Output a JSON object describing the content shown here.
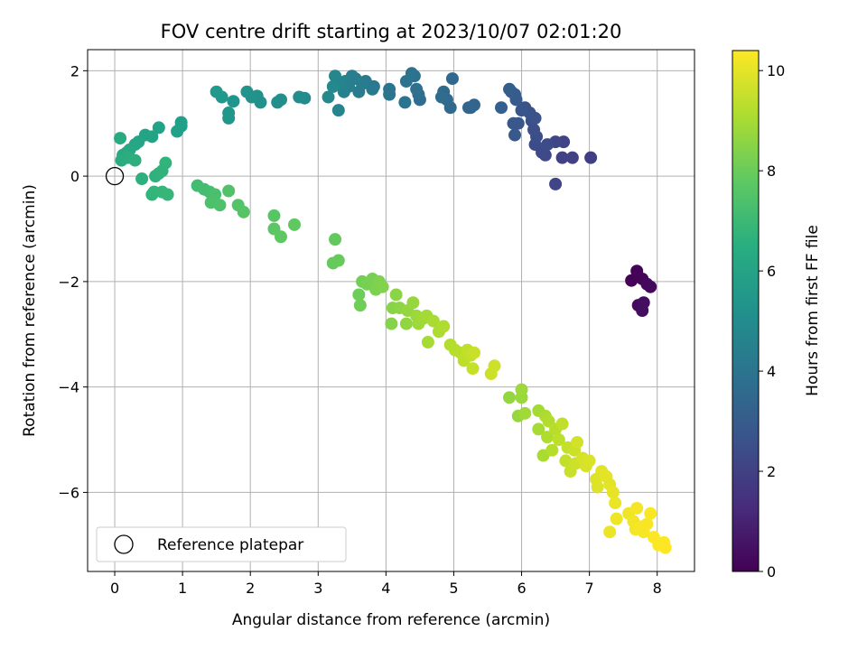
{
  "chart_data": {
    "type": "scatter",
    "title": "FOV centre drift starting at 2023/10/07 02:01:20",
    "xlabel": "Angular distance from reference (arcmin)",
    "ylabel": "Rotation from reference (arcmin)",
    "xlim": [
      -0.4,
      8.55
    ],
    "ylim": [
      -7.5,
      2.4
    ],
    "xticks": [
      0,
      1,
      2,
      3,
      4,
      5,
      6,
      7,
      8
    ],
    "yticks": [
      -6,
      -4,
      -2,
      0,
      2
    ],
    "grid": true,
    "legend": {
      "placement": "lower-left",
      "entries": [
        "Reference platepar"
      ]
    },
    "reference_point": {
      "x": 0,
      "y": 0
    },
    "colorbar": {
      "label": "Hours from first FF file",
      "colormap": "viridis",
      "range": [
        0,
        10.4
      ],
      "ticks": [
        0,
        2,
        4,
        6,
        8,
        10
      ]
    },
    "points": [
      {
        "x": 7.62,
        "y": -1.98,
        "h": 0.05
      },
      {
        "x": 7.7,
        "y": -1.8,
        "h": 0.1
      },
      {
        "x": 7.78,
        "y": -1.95,
        "h": 0.15
      },
      {
        "x": 7.85,
        "y": -2.05,
        "h": 0.2
      },
      {
        "x": 7.9,
        "y": -2.1,
        "h": 0.25
      },
      {
        "x": 7.72,
        "y": -2.45,
        "h": 0.3
      },
      {
        "x": 7.78,
        "y": -2.55,
        "h": 0.35
      },
      {
        "x": 7.8,
        "y": -2.4,
        "h": 0.4
      },
      {
        "x": 7.02,
        "y": 0.35,
        "h": 1.9
      },
      {
        "x": 6.75,
        "y": 0.35,
        "h": 2.0
      },
      {
        "x": 6.6,
        "y": 0.35,
        "h": 2.05
      },
      {
        "x": 6.62,
        "y": 0.65,
        "h": 2.1
      },
      {
        "x": 6.5,
        "y": -0.15,
        "h": 2.15
      },
      {
        "x": 6.5,
        "y": 0.65,
        "h": 2.2
      },
      {
        "x": 6.35,
        "y": 0.4,
        "h": 2.25
      },
      {
        "x": 6.3,
        "y": 0.45,
        "h": 2.3
      },
      {
        "x": 6.38,
        "y": 0.6,
        "h": 2.35
      },
      {
        "x": 6.2,
        "y": 0.6,
        "h": 2.4
      },
      {
        "x": 6.22,
        "y": 0.75,
        "h": 2.45
      },
      {
        "x": 6.18,
        "y": 0.88,
        "h": 2.5
      },
      {
        "x": 6.15,
        "y": 1.05,
        "h": 2.55
      },
      {
        "x": 6.2,
        "y": 1.1,
        "h": 2.6
      },
      {
        "x": 6.12,
        "y": 1.2,
        "h": 2.65
      },
      {
        "x": 6.05,
        "y": 1.3,
        "h": 2.7
      },
      {
        "x": 6.0,
        "y": 1.25,
        "h": 2.75
      },
      {
        "x": 5.95,
        "y": 1.0,
        "h": 2.8
      },
      {
        "x": 5.88,
        "y": 1.0,
        "h": 2.85
      },
      {
        "x": 5.9,
        "y": 0.78,
        "h": 2.9
      },
      {
        "x": 5.92,
        "y": 1.45,
        "h": 2.95
      },
      {
        "x": 5.9,
        "y": 1.55,
        "h": 3.0
      },
      {
        "x": 5.85,
        "y": 1.6,
        "h": 3.05
      },
      {
        "x": 5.82,
        "y": 1.65,
        "h": 3.1
      },
      {
        "x": 5.7,
        "y": 1.3,
        "h": 3.15
      },
      {
        "x": 5.3,
        "y": 1.35,
        "h": 3.3
      },
      {
        "x": 5.25,
        "y": 1.3,
        "h": 3.35
      },
      {
        "x": 5.22,
        "y": 1.3,
        "h": 3.4
      },
      {
        "x": 4.98,
        "y": 1.85,
        "h": 3.45
      },
      {
        "x": 4.95,
        "y": 1.3,
        "h": 3.5
      },
      {
        "x": 4.9,
        "y": 1.45,
        "h": 3.55
      },
      {
        "x": 4.85,
        "y": 1.6,
        "h": 3.6
      },
      {
        "x": 4.82,
        "y": 1.5,
        "h": 3.65
      },
      {
        "x": 4.5,
        "y": 1.45,
        "h": 3.7
      },
      {
        "x": 4.48,
        "y": 1.55,
        "h": 3.75
      },
      {
        "x": 4.45,
        "y": 1.65,
        "h": 3.8
      },
      {
        "x": 4.42,
        "y": 1.9,
        "h": 3.85
      },
      {
        "x": 4.38,
        "y": 1.95,
        "h": 3.9
      },
      {
        "x": 4.3,
        "y": 1.8,
        "h": 3.95
      },
      {
        "x": 4.28,
        "y": 1.4,
        "h": 4.0
      },
      {
        "x": 4.05,
        "y": 1.55,
        "h": 4.05
      },
      {
        "x": 4.05,
        "y": 1.65,
        "h": 4.1
      },
      {
        "x": 3.82,
        "y": 1.7,
        "h": 4.15
      },
      {
        "x": 3.8,
        "y": 1.65,
        "h": 4.2
      },
      {
        "x": 3.7,
        "y": 1.8,
        "h": 4.25
      },
      {
        "x": 3.65,
        "y": 1.75,
        "h": 4.3
      },
      {
        "x": 3.6,
        "y": 1.6,
        "h": 4.35
      },
      {
        "x": 3.55,
        "y": 1.85,
        "h": 4.4
      },
      {
        "x": 3.5,
        "y": 1.9,
        "h": 4.45
      },
      {
        "x": 3.45,
        "y": 1.7,
        "h": 4.5
      },
      {
        "x": 3.4,
        "y": 1.8,
        "h": 4.55
      },
      {
        "x": 3.38,
        "y": 1.6,
        "h": 4.6
      },
      {
        "x": 3.35,
        "y": 1.75,
        "h": 4.65
      },
      {
        "x": 3.3,
        "y": 1.25,
        "h": 4.7
      },
      {
        "x": 3.28,
        "y": 1.75,
        "h": 4.75
      },
      {
        "x": 3.25,
        "y": 1.9,
        "h": 4.8
      },
      {
        "x": 3.22,
        "y": 1.7,
        "h": 4.85
      },
      {
        "x": 3.15,
        "y": 1.5,
        "h": 4.9
      },
      {
        "x": 2.8,
        "y": 1.48,
        "h": 5.0
      },
      {
        "x": 2.72,
        "y": 1.5,
        "h": 5.05
      },
      {
        "x": 2.45,
        "y": 1.45,
        "h": 5.1
      },
      {
        "x": 2.4,
        "y": 1.4,
        "h": 5.15
      },
      {
        "x": 2.15,
        "y": 1.4,
        "h": 5.2
      },
      {
        "x": 2.1,
        "y": 1.52,
        "h": 5.25
      },
      {
        "x": 2.02,
        "y": 1.5,
        "h": 5.3
      },
      {
        "x": 1.95,
        "y": 1.6,
        "h": 5.35
      },
      {
        "x": 1.75,
        "y": 1.42,
        "h": 5.4
      },
      {
        "x": 1.68,
        "y": 1.1,
        "h": 5.45
      },
      {
        "x": 1.68,
        "y": 1.2,
        "h": 5.5
      },
      {
        "x": 1.58,
        "y": 1.5,
        "h": 5.55
      },
      {
        "x": 1.5,
        "y": 1.6,
        "h": 5.6
      },
      {
        "x": 0.98,
        "y": 0.95,
        "h": 5.8
      },
      {
        "x": 0.98,
        "y": 1.02,
        "h": 5.85
      },
      {
        "x": 0.92,
        "y": 0.85,
        "h": 5.9
      },
      {
        "x": 0.65,
        "y": 0.92,
        "h": 5.95
      },
      {
        "x": 0.55,
        "y": 0.75,
        "h": 6.0
      },
      {
        "x": 0.45,
        "y": 0.78,
        "h": 6.05
      },
      {
        "x": 0.35,
        "y": 0.65,
        "h": 6.1
      },
      {
        "x": 0.3,
        "y": 0.6,
        "h": 6.15
      },
      {
        "x": 0.22,
        "y": 0.5,
        "h": 6.2
      },
      {
        "x": 0.18,
        "y": 0.45,
        "h": 6.25
      },
      {
        "x": 0.12,
        "y": 0.4,
        "h": 6.3
      },
      {
        "x": 0.08,
        "y": 0.72,
        "h": 6.35
      },
      {
        "x": 0.1,
        "y": 0.3,
        "h": 6.4
      },
      {
        "x": 0.2,
        "y": 0.35,
        "h": 6.45
      },
      {
        "x": 0.3,
        "y": 0.3,
        "h": 6.5
      },
      {
        "x": 0.4,
        "y": -0.05,
        "h": 6.55
      },
      {
        "x": 0.6,
        "y": 0.0,
        "h": 6.6
      },
      {
        "x": 0.65,
        "y": 0.05,
        "h": 6.65
      },
      {
        "x": 0.7,
        "y": 0.1,
        "h": 6.7
      },
      {
        "x": 0.75,
        "y": 0.25,
        "h": 6.75
      },
      {
        "x": 0.58,
        "y": -0.3,
        "h": 6.8
      },
      {
        "x": 0.55,
        "y": -0.35,
        "h": 6.85
      },
      {
        "x": 0.7,
        "y": -0.3,
        "h": 6.9
      },
      {
        "x": 0.78,
        "y": -0.35,
        "h": 6.95
      },
      {
        "x": 1.22,
        "y": -0.18,
        "h": 7.2
      },
      {
        "x": 1.32,
        "y": -0.25,
        "h": 7.25
      },
      {
        "x": 1.4,
        "y": -0.3,
        "h": 7.3
      },
      {
        "x": 1.48,
        "y": -0.35,
        "h": 7.35
      },
      {
        "x": 1.42,
        "y": -0.5,
        "h": 7.4
      },
      {
        "x": 1.55,
        "y": -0.55,
        "h": 7.45
      },
      {
        "x": 1.68,
        "y": -0.28,
        "h": 7.5
      },
      {
        "x": 1.82,
        "y": -0.55,
        "h": 7.55
      },
      {
        "x": 1.9,
        "y": -0.68,
        "h": 7.6
      },
      {
        "x": 2.35,
        "y": -0.75,
        "h": 7.65
      },
      {
        "x": 2.35,
        "y": -1.0,
        "h": 7.7
      },
      {
        "x": 2.45,
        "y": -1.15,
        "h": 7.75
      },
      {
        "x": 2.65,
        "y": -0.92,
        "h": 7.8
      },
      {
        "x": 3.25,
        "y": -1.2,
        "h": 7.85
      },
      {
        "x": 3.22,
        "y": -1.65,
        "h": 7.9
      },
      {
        "x": 3.3,
        "y": -1.6,
        "h": 7.95
      },
      {
        "x": 3.6,
        "y": -2.25,
        "h": 8.05
      },
      {
        "x": 3.62,
        "y": -2.45,
        "h": 8.1
      },
      {
        "x": 3.65,
        "y": -2.0,
        "h": 8.15
      },
      {
        "x": 3.72,
        "y": -2.05,
        "h": 8.2
      },
      {
        "x": 3.8,
        "y": -1.95,
        "h": 8.25
      },
      {
        "x": 3.85,
        "y": -2.15,
        "h": 8.3
      },
      {
        "x": 3.9,
        "y": -2.0,
        "h": 8.35
      },
      {
        "x": 3.95,
        "y": -2.1,
        "h": 8.4
      },
      {
        "x": 4.08,
        "y": -2.8,
        "h": 8.45
      },
      {
        "x": 4.1,
        "y": -2.5,
        "h": 8.5
      },
      {
        "x": 4.15,
        "y": -2.25,
        "h": 8.55
      },
      {
        "x": 4.2,
        "y": -2.5,
        "h": 8.6
      },
      {
        "x": 4.3,
        "y": -2.8,
        "h": 8.65
      },
      {
        "x": 4.32,
        "y": -2.55,
        "h": 8.7
      },
      {
        "x": 4.4,
        "y": -2.4,
        "h": 8.75
      },
      {
        "x": 4.45,
        "y": -2.65,
        "h": 8.8
      },
      {
        "x": 4.48,
        "y": -2.8,
        "h": 8.85
      },
      {
        "x": 4.55,
        "y": -2.7,
        "h": 8.9
      },
      {
        "x": 4.6,
        "y": -2.65,
        "h": 8.95
      },
      {
        "x": 4.62,
        "y": -3.15,
        "h": 9.0
      },
      {
        "x": 4.7,
        "y": -2.75,
        "h": 9.05
      },
      {
        "x": 4.78,
        "y": -2.95,
        "h": 9.1
      },
      {
        "x": 4.85,
        "y": -2.85,
        "h": 9.15
      },
      {
        "x": 4.95,
        "y": -3.2,
        "h": 9.2
      },
      {
        "x": 5.02,
        "y": -3.3,
        "h": 9.25
      },
      {
        "x": 5.1,
        "y": -3.35,
        "h": 9.3
      },
      {
        "x": 5.15,
        "y": -3.5,
        "h": 9.35
      },
      {
        "x": 5.2,
        "y": -3.3,
        "h": 9.4
      },
      {
        "x": 5.25,
        "y": -3.4,
        "h": 9.45
      },
      {
        "x": 5.28,
        "y": -3.65,
        "h": 9.5
      },
      {
        "x": 5.3,
        "y": -3.35,
        "h": 9.55
      },
      {
        "x": 5.55,
        "y": -3.75,
        "h": 9.6
      },
      {
        "x": 5.6,
        "y": -3.6,
        "h": 9.65
      },
      {
        "x": 5.82,
        "y": -4.2,
        "h": 8.7
      },
      {
        "x": 5.95,
        "y": -4.55,
        "h": 8.75
      },
      {
        "x": 6.0,
        "y": -4.2,
        "h": 8.8
      },
      {
        "x": 6.0,
        "y": -4.05,
        "h": 8.85
      },
      {
        "x": 6.05,
        "y": -4.5,
        "h": 8.9
      },
      {
        "x": 6.25,
        "y": -4.45,
        "h": 8.95
      },
      {
        "x": 6.25,
        "y": -4.8,
        "h": 9.0
      },
      {
        "x": 6.32,
        "y": -5.3,
        "h": 9.05
      },
      {
        "x": 6.35,
        "y": -4.55,
        "h": 9.1
      },
      {
        "x": 6.38,
        "y": -4.95,
        "h": 9.15
      },
      {
        "x": 6.4,
        "y": -4.65,
        "h": 9.2
      },
      {
        "x": 6.45,
        "y": -5.2,
        "h": 9.25
      },
      {
        "x": 6.5,
        "y": -4.8,
        "h": 9.3
      },
      {
        "x": 6.55,
        "y": -5.0,
        "h": 9.35
      },
      {
        "x": 6.6,
        "y": -4.7,
        "h": 9.4
      },
      {
        "x": 6.65,
        "y": -5.4,
        "h": 9.45
      },
      {
        "x": 6.68,
        "y": -5.15,
        "h": 9.5
      },
      {
        "x": 6.72,
        "y": -5.6,
        "h": 9.55
      },
      {
        "x": 6.78,
        "y": -5.2,
        "h": 9.6
      },
      {
        "x": 6.8,
        "y": -5.45,
        "h": 9.65
      },
      {
        "x": 6.82,
        "y": -5.05,
        "h": 9.7
      },
      {
        "x": 6.9,
        "y": -5.35,
        "h": 9.75
      },
      {
        "x": 6.95,
        "y": -5.5,
        "h": 9.8
      },
      {
        "x": 7.0,
        "y": -5.4,
        "h": 9.85
      },
      {
        "x": 7.1,
        "y": -5.75,
        "h": 9.9
      },
      {
        "x": 7.12,
        "y": -5.9,
        "h": 9.92
      },
      {
        "x": 7.18,
        "y": -5.6,
        "h": 9.95
      },
      {
        "x": 7.25,
        "y": -5.7,
        "h": 9.98
      },
      {
        "x": 7.3,
        "y": -5.85,
        "h": 10.0
      },
      {
        "x": 7.35,
        "y": -6.0,
        "h": 10.05
      },
      {
        "x": 7.38,
        "y": -6.2,
        "h": 10.1
      },
      {
        "x": 7.3,
        "y": -6.75,
        "h": 10.12
      },
      {
        "x": 7.4,
        "y": -6.5,
        "h": 10.15
      },
      {
        "x": 7.58,
        "y": -6.4,
        "h": 10.18
      },
      {
        "x": 7.65,
        "y": -6.55,
        "h": 10.2
      },
      {
        "x": 7.68,
        "y": -6.7,
        "h": 10.22
      },
      {
        "x": 7.7,
        "y": -6.3,
        "h": 10.25
      },
      {
        "x": 7.75,
        "y": -6.65,
        "h": 10.28
      },
      {
        "x": 7.8,
        "y": -6.75,
        "h": 10.3
      },
      {
        "x": 7.85,
        "y": -6.6,
        "h": 10.32
      },
      {
        "x": 7.9,
        "y": -6.4,
        "h": 10.34
      },
      {
        "x": 7.95,
        "y": -6.85,
        "h": 10.36
      },
      {
        "x": 8.02,
        "y": -7.0,
        "h": 10.38
      },
      {
        "x": 8.1,
        "y": -6.95,
        "h": 10.39
      },
      {
        "x": 8.12,
        "y": -7.05,
        "h": 10.4
      }
    ]
  }
}
